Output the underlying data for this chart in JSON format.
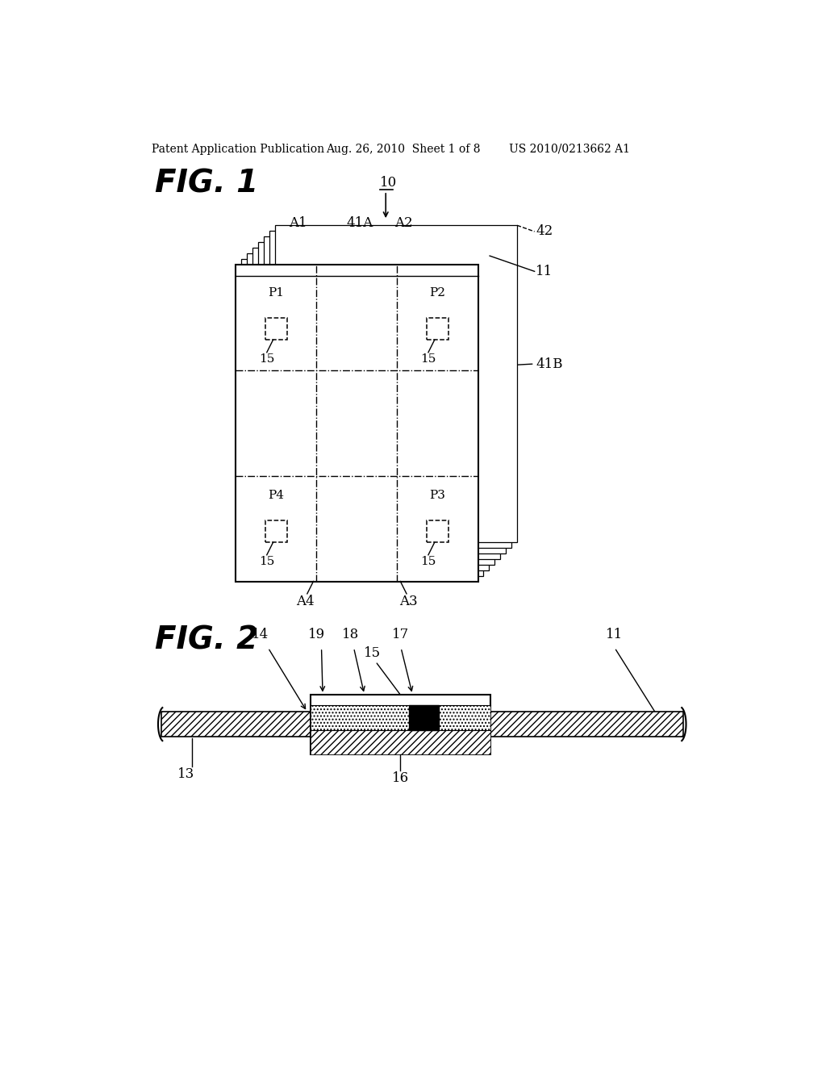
{
  "bg_color": "#ffffff",
  "header_text": "Patent Application Publication",
  "header_date": "Aug. 26, 2010  Sheet 1 of 8",
  "header_patent": "US 2010/0213662 A1",
  "fig1_label": "FIG. 1",
  "fig2_label": "FIG. 2",
  "line_color": "#000000"
}
